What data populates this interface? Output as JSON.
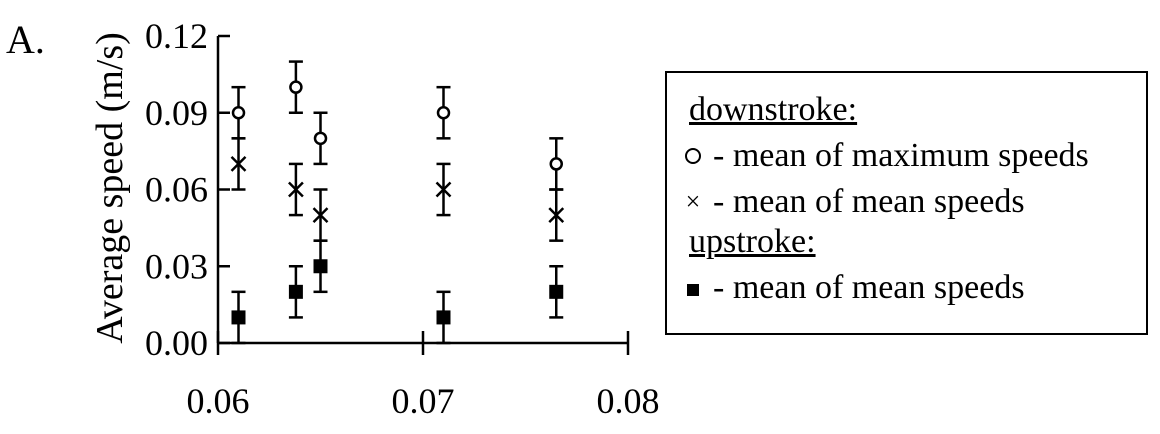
{
  "panel_label": "A.",
  "legend": {
    "downstroke_heading": "downstroke:",
    "max_label": "- mean of maximum speeds",
    "mean_label": "- mean of mean speeds",
    "upstroke_heading": "upstroke:",
    "up_mean_label": "- mean of mean speeds",
    "max_marker": "circle-icon",
    "mean_marker": "cross-icon",
    "up_marker": "square-icon"
  },
  "chart_data": {
    "type": "scatter",
    "title": "",
    "xlabel": "",
    "ylabel": "Average speed (m/s)",
    "xlim": [
      0.06,
      0.08
    ],
    "ylim": [
      0.0,
      0.12
    ],
    "xticks": [
      "0.06",
      "0.07",
      "0.08"
    ],
    "yticks": [
      "0.00",
      "0.03",
      "0.06",
      "0.09",
      "0.12"
    ],
    "xtick_values": [
      0.06,
      0.07,
      0.08
    ],
    "ytick_values": [
      0.0,
      0.03,
      0.06,
      0.09,
      0.12
    ],
    "grid": false,
    "legend_position": "right",
    "series": [
      {
        "group": "downstroke",
        "marker": "circle",
        "x": [
          0.061,
          0.0638,
          0.065,
          0.071,
          0.0765
        ],
        "y": [
          0.09,
          0.1,
          0.08,
          0.09,
          0.07
        ],
        "err": [
          0.01,
          0.01,
          0.01,
          0.01,
          0.01
        ]
      },
      {
        "group": "downstroke",
        "marker": "cross",
        "x": [
          0.061,
          0.0638,
          0.065,
          0.071,
          0.0765
        ],
        "y": [
          0.07,
          0.06,
          0.05,
          0.06,
          0.05
        ],
        "err": [
          0.01,
          0.01,
          0.01,
          0.01,
          0.01
        ]
      },
      {
        "group": "upstroke",
        "marker": "square",
        "x": [
          0.061,
          0.0638,
          0.065,
          0.071,
          0.0765
        ],
        "y": [
          0.01,
          0.02,
          0.03,
          0.01,
          0.02
        ],
        "err": [
          0.01,
          0.01,
          0.01,
          0.01,
          0.01
        ]
      }
    ]
  }
}
